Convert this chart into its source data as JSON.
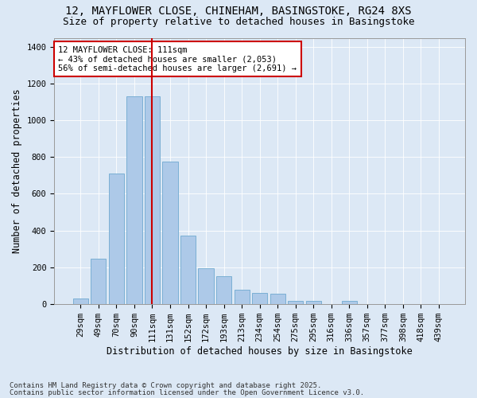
{
  "title1": "12, MAYFLOWER CLOSE, CHINEHAM, BASINGSTOKE, RG24 8XS",
  "title2": "Size of property relative to detached houses in Basingstoke",
  "xlabel": "Distribution of detached houses by size in Basingstoke",
  "ylabel": "Number of detached properties",
  "categories": [
    "29sqm",
    "49sqm",
    "70sqm",
    "90sqm",
    "111sqm",
    "131sqm",
    "152sqm",
    "172sqm",
    "193sqm",
    "213sqm",
    "234sqm",
    "254sqm",
    "275sqm",
    "295sqm",
    "316sqm",
    "336sqm",
    "357sqm",
    "377sqm",
    "398sqm",
    "418sqm",
    "439sqm"
  ],
  "values": [
    28,
    248,
    710,
    1130,
    1130,
    775,
    370,
    195,
    150,
    75,
    60,
    55,
    16,
    18,
    0,
    15,
    0,
    0,
    0,
    0,
    0
  ],
  "bar_color": "#adc9e8",
  "bar_edge_color": "#7aafd4",
  "vline_x": 4,
  "vline_color": "#cc0000",
  "annotation_text": "12 MAYFLOWER CLOSE: 111sqm\n← 43% of detached houses are smaller (2,053)\n56% of semi-detached houses are larger (2,691) →",
  "annotation_box_facecolor": "#ffffff",
  "annotation_box_edgecolor": "#cc0000",
  "footer1": "Contains HM Land Registry data © Crown copyright and database right 2025.",
  "footer2": "Contains public sector information licensed under the Open Government Licence v3.0.",
  "ylim": [
    0,
    1450
  ],
  "yticks": [
    0,
    200,
    400,
    600,
    800,
    1000,
    1200,
    1400
  ],
  "bg_color": "#dce8f5",
  "plot_bg_color": "#dce8f5",
  "title1_fontsize": 10,
  "title2_fontsize": 9,
  "xlabel_fontsize": 8.5,
  "ylabel_fontsize": 8.5,
  "tick_fontsize": 7.5,
  "ann_fontsize": 7.5,
  "footer_fontsize": 6.5
}
